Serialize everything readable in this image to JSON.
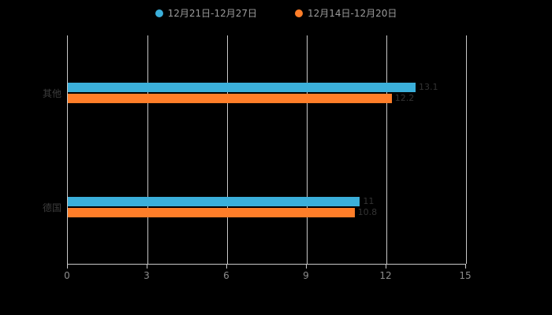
{
  "chart_data": {
    "type": "bar",
    "orientation": "horizontal",
    "title": "",
    "categories": [
      "其他",
      "德国"
    ],
    "series": [
      {
        "name": "12月21日-12月27日",
        "color": "#3BAFDA",
        "values": [
          13.1,
          11.0
        ]
      },
      {
        "name": "12月14日-12月20日",
        "color": "#FF7E29",
        "values": [
          12.2,
          10.8
        ]
      }
    ],
    "xlabel": "",
    "ylabel": "",
    "xlim": [
      0,
      15
    ],
    "x_ticks": [
      0,
      3,
      6,
      9,
      12,
      15
    ],
    "grid": true,
    "legend_position": "top",
    "background_color": "#000000",
    "value_labels": true
  }
}
